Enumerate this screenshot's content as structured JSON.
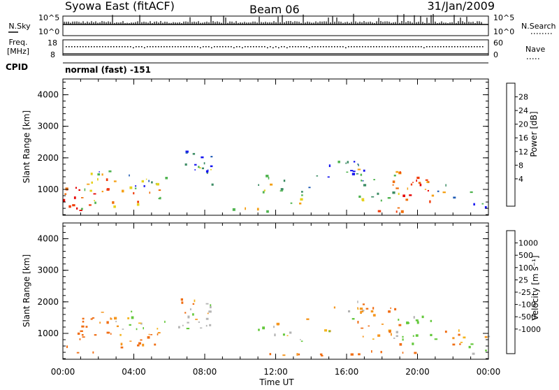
{
  "header": {
    "station": "Syowa East (fitACF)",
    "beam": "Beam 06",
    "date": "31/Jan/2009"
  },
  "nsky": {
    "left_label": "N.Sky",
    "right_label": "N.Search",
    "ticks": [
      "10^5",
      "10^0"
    ]
  },
  "freq": {
    "left_label_1": "Freq.",
    "left_label_2": "[MHz]",
    "right_label": "Nave",
    "left_ticks": [
      "18",
      "8"
    ],
    "right_ticks": [
      "60",
      "0"
    ]
  },
  "cpid": {
    "label": "CPID",
    "value": "normal (fast) -151"
  },
  "power_panel": {
    "ylabel": "Slant Range [km]",
    "yticks": [
      "1000",
      "2000",
      "3000",
      "4000"
    ],
    "colorbar_label": "Power [dB]",
    "colorbar_ticks": [
      "4",
      "8",
      "12",
      "16",
      "20",
      "24",
      "28"
    ],
    "colors": [
      "#1414f0",
      "#1e5ab4",
      "#3c8c64",
      "#50b450",
      "#e6d21e",
      "#f5a014",
      "#f06e0a",
      "#f03c0a",
      "#e60000"
    ]
  },
  "velocity_panel": {
    "ylabel": "Slant Range [km]",
    "yticks": [
      "1000",
      "2000",
      "3000",
      "4000"
    ],
    "colorbar_label": "Velocity [m s⁻¹]",
    "colorbar_ticks": [
      "1000",
      "500",
      "100",
      "25",
      "-25",
      "-100",
      "-500",
      "-1000"
    ],
    "colors": [
      "#1446b4",
      "#1e6e8c",
      "#3c9650",
      "#64c83c",
      "#b4b4b4",
      "#f5b41e",
      "#f5961e",
      "#f06e14",
      "#e63c0a",
      "#e60000"
    ]
  },
  "xaxis": {
    "label": "Time UT",
    "ticks": [
      "00:00",
      "04:00",
      "08:00",
      "12:00",
      "16:00",
      "20:00",
      "00:00"
    ]
  },
  "chart_data": {
    "type": "heatmap",
    "x_unit": "hours UT",
    "xlim": [
      0,
      24
    ],
    "ylim": [
      180,
      4500
    ],
    "power_range_db": [
      0,
      30
    ],
    "velocity_range": [
      -1000,
      1000
    ],
    "echo_regions": [
      {
        "t0": 0.0,
        "t1": 1.0,
        "r0": 300,
        "r1": 1300,
        "power": 26,
        "velocity": -300
      },
      {
        "t0": 1.0,
        "t1": 3.0,
        "r0": 350,
        "r1": 1500,
        "power": 20,
        "velocity": -250
      },
      {
        "t0": 1.5,
        "t1": 4.0,
        "r0": 1100,
        "r1": 1700,
        "power": 10,
        "velocity": 60
      },
      {
        "t0": 3.0,
        "t1": 5.5,
        "r0": 450,
        "r1": 1050,
        "power": 18,
        "velocity": -150
      },
      {
        "t0": 4.0,
        "t1": 7.0,
        "r0": 1050,
        "r1": 1350,
        "power": 8,
        "velocity": 120
      },
      {
        "t0": 6.5,
        "t1": 8.5,
        "r0": 1000,
        "r1": 2200,
        "power": 7,
        "velocity": 20
      },
      {
        "t0": 11.0,
        "t1": 12.5,
        "r0": 800,
        "r1": 1400,
        "power": 14,
        "velocity": 80
      },
      {
        "t0": 12.0,
        "t1": 13.5,
        "r0": 500,
        "r1": 1000,
        "power": 12,
        "velocity": 150
      },
      {
        "t0": 13.5,
        "t1": 15.0,
        "r0": 1000,
        "r1": 1500,
        "power": 8,
        "velocity": 30
      },
      {
        "t0": 15.0,
        "t1": 17.0,
        "r0": 1400,
        "r1": 2000,
        "power": 6,
        "velocity": 10
      },
      {
        "t0": 16.5,
        "t1": 19.0,
        "r0": 600,
        "r1": 1800,
        "power": 14,
        "velocity": -120
      },
      {
        "t0": 18.5,
        "t1": 21.0,
        "r0": 500,
        "r1": 1500,
        "power": 22,
        "velocity": 200
      },
      {
        "t0": 21.0,
        "t1": 22.5,
        "r0": 600,
        "r1": 1100,
        "power": 10,
        "velocity": -80
      },
      {
        "t0": 22.5,
        "t1": 24.0,
        "r0": 250,
        "r1": 900,
        "power": 6,
        "velocity": 40
      },
      {
        "t0": 9.5,
        "t1": 15.0,
        "r0": 250,
        "r1": 400,
        "power": 20,
        "velocity": -200
      },
      {
        "t0": 16.0,
        "t1": 20.0,
        "r0": 250,
        "r1": 400,
        "power": 24,
        "velocity": -250
      }
    ]
  }
}
